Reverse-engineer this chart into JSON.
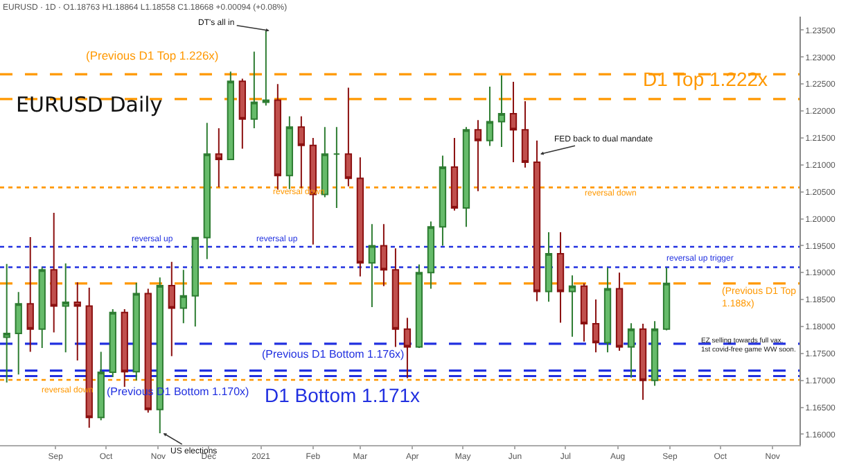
{
  "chart_data": {
    "type": "candlestick",
    "title": "EURUSD Daily",
    "subtitle": "EURUSD · 1D · O1.18763 H1.18864 L1.18558 C1.18668 +0.00094 (+0.08%)",
    "x": [
      "2020-08-03",
      "2020-08-10",
      "2020-08-17",
      "2020-08-24",
      "2020-08-31",
      "2020-09-07",
      "2020-09-14",
      "2020-09-21",
      "2020-09-28",
      "2020-10-05",
      "2020-10-12",
      "2020-10-19",
      "2020-10-26",
      "2020-11-02",
      "2020-11-09",
      "2020-11-16",
      "2020-11-23",
      "2020-11-30",
      "2020-12-07",
      "2020-12-14",
      "2020-12-21",
      "2020-12-28",
      "2021-01-04",
      "2021-01-11",
      "2021-01-18",
      "2021-01-25",
      "2021-02-01",
      "2021-02-08",
      "2021-02-15",
      "2021-02-22",
      "2021-03-01",
      "2021-03-08",
      "2021-03-15",
      "2021-03-22",
      "2021-03-29",
      "2021-04-05",
      "2021-04-12",
      "2021-04-19",
      "2021-04-26",
      "2021-05-03",
      "2021-05-10",
      "2021-05-17",
      "2021-05-24",
      "2021-05-31",
      "2021-06-07",
      "2021-06-14",
      "2021-06-21",
      "2021-06-28",
      "2021-07-05",
      "2021-07-12",
      "2021-07-19",
      "2021-07-26",
      "2021-08-02",
      "2021-08-09",
      "2021-08-16",
      "2021-08-23",
      "2021-08-30"
    ],
    "ohlc": [
      [
        1.178,
        1.1916,
        1.1696,
        1.1787
      ],
      [
        1.1787,
        1.1864,
        1.1711,
        1.1842
      ],
      [
        1.1842,
        1.1966,
        1.1753,
        1.1795
      ],
      [
        1.1795,
        1.191,
        1.176,
        1.1905
      ],
      [
        1.1905,
        1.2011,
        1.1789,
        1.1838
      ],
      [
        1.1838,
        1.1917,
        1.1752,
        1.1845
      ],
      [
        1.1845,
        1.1882,
        1.1737,
        1.1838
      ],
      [
        1.1838,
        1.1872,
        1.1612,
        1.1631
      ],
      [
        1.1631,
        1.1753,
        1.1626,
        1.1715
      ],
      [
        1.1715,
        1.1832,
        1.1706,
        1.1826
      ],
      [
        1.1826,
        1.1832,
        1.1688,
        1.1716
      ],
      [
        1.1716,
        1.1881,
        1.17,
        1.1861
      ],
      [
        1.1861,
        1.187,
        1.164,
        1.1646
      ],
      [
        1.1646,
        1.1891,
        1.1602,
        1.1876
      ],
      [
        1.1876,
        1.192,
        1.1745,
        1.1834
      ],
      [
        1.1834,
        1.1905,
        1.1806,
        1.1857
      ],
      [
        1.1857,
        1.1965,
        1.18,
        1.1965
      ],
      [
        1.1965,
        1.2178,
        1.1925,
        1.212
      ],
      [
        1.212,
        1.2168,
        1.2059,
        1.211
      ],
      [
        1.211,
        1.2273,
        1.2109,
        1.2255
      ],
      [
        1.2255,
        1.226,
        1.213,
        1.2185
      ],
      [
        1.2185,
        1.231,
        1.2168,
        1.2216
      ],
      [
        1.2216,
        1.2349,
        1.221,
        1.222
      ],
      [
        1.222,
        1.225,
        1.2054,
        1.208
      ],
      [
        1.208,
        1.219,
        1.2055,
        1.217
      ],
      [
        1.217,
        1.219,
        1.2057,
        1.2136
      ],
      [
        1.2136,
        1.215,
        1.1952,
        1.2045
      ],
      [
        1.2045,
        1.217,
        1.204,
        1.212
      ],
      [
        1.212,
        1.217,
        1.202,
        1.212
      ],
      [
        1.212,
        1.2243,
        1.206,
        1.2075
      ],
      [
        1.2075,
        1.2114,
        1.1893,
        1.1918
      ],
      [
        1.1918,
        1.199,
        1.1836,
        1.195
      ],
      [
        1.195,
        1.199,
        1.1875,
        1.1905
      ],
      [
        1.1905,
        1.1945,
        1.1762,
        1.1795
      ],
      [
        1.1795,
        1.1816,
        1.1704,
        1.1762
      ],
      [
        1.1762,
        1.1915,
        1.176,
        1.19
      ],
      [
        1.19,
        1.1995,
        1.187,
        1.1985
      ],
      [
        1.1985,
        1.2117,
        1.195,
        1.2096
      ],
      [
        1.2096,
        1.215,
        1.2015,
        1.202
      ],
      [
        1.202,
        1.217,
        1.1985,
        1.2165
      ],
      [
        1.2165,
        1.2183,
        1.2051,
        1.2145
      ],
      [
        1.2145,
        1.2245,
        1.2135,
        1.218
      ],
      [
        1.218,
        1.2266,
        1.2133,
        1.2195
      ],
      [
        1.2195,
        1.2254,
        1.2105,
        1.2165
      ],
      [
        1.2165,
        1.2218,
        1.2095,
        1.2105
      ],
      [
        1.2105,
        1.2145,
        1.1847,
        1.1865
      ],
      [
        1.1865,
        1.1975,
        1.1846,
        1.1935
      ],
      [
        1.1935,
        1.1975,
        1.1807,
        1.1865
      ],
      [
        1.1865,
        1.1895,
        1.1781,
        1.1875
      ],
      [
        1.1875,
        1.188,
        1.1772,
        1.1805
      ],
      [
        1.1805,
        1.185,
        1.1752,
        1.177
      ],
      [
        1.177,
        1.1909,
        1.1752,
        1.187
      ],
      [
        1.187,
        1.19,
        1.1755,
        1.1762
      ],
      [
        1.1762,
        1.1806,
        1.1705,
        1.1795
      ],
      [
        1.1795,
        1.1805,
        1.1664,
        1.17
      ],
      [
        1.17,
        1.181,
        1.169,
        1.1795
      ],
      [
        1.1795,
        1.1909,
        1.1793,
        1.188
      ]
    ],
    "xlim": [
      "2020-07-30",
      "2021-11-17"
    ],
    "xticks": [
      {
        "value": "2020-09-01",
        "label": "Sep"
      },
      {
        "value": "2020-10-01",
        "label": "Oct"
      },
      {
        "value": "2020-11-01",
        "label": "Nov"
      },
      {
        "value": "2020-12-01",
        "label": "Dec"
      },
      {
        "value": "2021-01-01",
        "label": "2021"
      },
      {
        "value": "2021-02-01",
        "label": "Feb"
      },
      {
        "value": "2021-03-01",
        "label": "Mar"
      },
      {
        "value": "2021-04-01",
        "label": "Apr"
      },
      {
        "value": "2021-05-01",
        "label": "May"
      },
      {
        "value": "2021-06-01",
        "label": "Jun"
      },
      {
        "value": "2021-07-01",
        "label": "Jul"
      },
      {
        "value": "2021-08-01",
        "label": "Aug"
      },
      {
        "value": "2021-09-01",
        "label": "Sep"
      },
      {
        "value": "2021-10-01",
        "label": "Oct"
      },
      {
        "value": "2021-11-01",
        "label": "Nov"
      }
    ],
    "ylim": [
      1.158,
      1.2375
    ],
    "yticks": [
      {
        "value": 1.16,
        "label": "1.16000"
      },
      {
        "value": 1.165,
        "label": "1.16500"
      },
      {
        "value": 1.17,
        "label": "1.17000"
      },
      {
        "value": 1.175,
        "label": "1.17500"
      },
      {
        "value": 1.18,
        "label": "1.18000"
      },
      {
        "value": 1.185,
        "label": "1.18500"
      },
      {
        "value": 1.19,
        "label": "1.19000"
      },
      {
        "value": 1.195,
        "label": "1.19500"
      },
      {
        "value": 1.2,
        "label": "1.20000"
      },
      {
        "value": 1.205,
        "label": "1.20500"
      },
      {
        "value": 1.21,
        "label": "1.21000"
      },
      {
        "value": 1.215,
        "label": "1.21500"
      },
      {
        "value": 1.22,
        "label": "1.22000"
      },
      {
        "value": 1.225,
        "label": "1.22500"
      },
      {
        "value": 1.23,
        "label": "1.23000"
      },
      {
        "value": 1.235,
        "label": "1.23500"
      }
    ],
    "ref_lines": [
      {
        "axis": "y",
        "value": 1.2268,
        "label": "(Previous D1 Top 1.226x)",
        "color": "#ff9800",
        "line_style": "dashed"
      },
      {
        "axis": "y",
        "value": 1.2222,
        "label": "D1 Top 1.222x",
        "color": "#ff9800",
        "line_style": "dashed"
      },
      {
        "axis": "y",
        "value": 1.2058,
        "label": "reversal down",
        "color": "#ff9800",
        "line_style": "dotted"
      },
      {
        "axis": "y",
        "value": 1.1948,
        "label": "reversal up",
        "color": "#2130e0",
        "line_style": "dotted"
      },
      {
        "axis": "y",
        "value": 1.191,
        "label": "reversal up trigger",
        "color": "#2130e0",
        "line_style": "dotted"
      },
      {
        "axis": "y",
        "value": 1.188,
        "label": "(Previous D1 Top 1.188x)",
        "color": "#ff9800",
        "line_style": "dashed"
      },
      {
        "axis": "y",
        "value": 1.1768,
        "label": "(Previous D1 Bottom 1.176x)",
        "color": "#2130e0",
        "line_style": "dashed"
      },
      {
        "axis": "y",
        "value": 1.1718,
        "label": "D1 Bottom 1.171x",
        "color": "#2130e0",
        "line_style": "dashed"
      },
      {
        "axis": "y",
        "value": 1.1708,
        "label": "(Previous D1 Bottom 1.170x)",
        "color": "#2130e0",
        "line_style": "dashed"
      },
      {
        "axis": "y",
        "value": 1.1701,
        "label": "reversal down",
        "color": "#ff9800",
        "line_style": "dotted"
      }
    ],
    "annotations": [
      {
        "text": "DT's all in",
        "x": "2021-01-06",
        "y": 1.2349
      },
      {
        "text": "FED back to dual mandate",
        "x": "2021-06-16",
        "y": 1.212
      },
      {
        "text": "US elections",
        "x": "2020-11-04",
        "y": 1.1602
      },
      "EZ selling towards full vax.\n1st covid-free game WW soon.",
      "reversal down",
      "reversal up"
    ]
  }
}
